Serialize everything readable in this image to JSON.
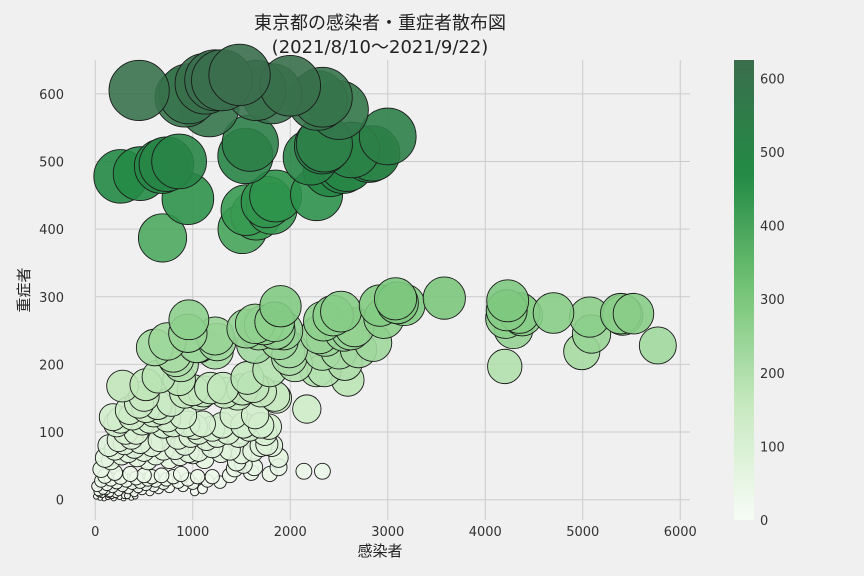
{
  "chart_data": {
    "type": "scatter",
    "title": "東京都の感染者・重症者散布図",
    "subtitle": "(2021/8/10〜2021/9/22)",
    "xlabel": "感染者",
    "ylabel": "重症者",
    "xlim": [
      -300,
      6100
    ],
    "ylim": [
      -30,
      650
    ],
    "xticks": [
      0,
      1000,
      2000,
      3000,
      4000,
      5000,
      6000
    ],
    "yticks": [
      0,
      100,
      200,
      300,
      400,
      500,
      600
    ],
    "grid": true,
    "colorbar": {
      "ticks": [
        0,
        100,
        200,
        300,
        400,
        500,
        600
      ],
      "min": 0,
      "max": 625,
      "colors": [
        "#f7fcf5",
        "#c7e9c0",
        "#74c476",
        "#238b45",
        "#3b6e4d"
      ]
    },
    "marker_size": "proportional to 重症者",
    "marker_color": "proportional to 重症者",
    "points": [
      {
        "x": 450,
        "y": 605
      },
      {
        "x": 920,
        "y": 595
      },
      {
        "x": 960,
        "y": 600
      },
      {
        "x": 1130,
        "y": 615
      },
      {
        "x": 1170,
        "y": 580
      },
      {
        "x": 1230,
        "y": 620
      },
      {
        "x": 1300,
        "y": 620
      },
      {
        "x": 1480,
        "y": 628
      },
      {
        "x": 1650,
        "y": 605
      },
      {
        "x": 1810,
        "y": 600
      },
      {
        "x": 2000,
        "y": 612
      },
      {
        "x": 2280,
        "y": 590
      },
      {
        "x": 2330,
        "y": 595
      },
      {
        "x": 2500,
        "y": 576
      },
      {
        "x": 260,
        "y": 478
      },
      {
        "x": 460,
        "y": 482
      },
      {
        "x": 680,
        "y": 493
      },
      {
        "x": 730,
        "y": 496
      },
      {
        "x": 860,
        "y": 500
      },
      {
        "x": 950,
        "y": 445
      },
      {
        "x": 690,
        "y": 387
      },
      {
        "x": 1540,
        "y": 508
      },
      {
        "x": 1590,
        "y": 527
      },
      {
        "x": 2210,
        "y": 506
      },
      {
        "x": 2330,
        "y": 523
      },
      {
        "x": 2350,
        "y": 526
      },
      {
        "x": 2410,
        "y": 488
      },
      {
        "x": 2540,
        "y": 493
      },
      {
        "x": 2580,
        "y": 496
      },
      {
        "x": 2630,
        "y": 517
      },
      {
        "x": 2810,
        "y": 510
      },
      {
        "x": 2840,
        "y": 512
      },
      {
        "x": 3000,
        "y": 537
      },
      {
        "x": 1510,
        "y": 400
      },
      {
        "x": 1550,
        "y": 428
      },
      {
        "x": 1650,
        "y": 421
      },
      {
        "x": 1760,
        "y": 440
      },
      {
        "x": 1810,
        "y": 430
      },
      {
        "x": 1850,
        "y": 449
      },
      {
        "x": 2270,
        "y": 451
      },
      {
        "x": 960,
        "y": 266
      },
      {
        "x": 950,
        "y": 246
      },
      {
        "x": 1060,
        "y": 230
      },
      {
        "x": 1230,
        "y": 242
      },
      {
        "x": 1250,
        "y": 233
      },
      {
        "x": 1230,
        "y": 220
      },
      {
        "x": 1550,
        "y": 253
      },
      {
        "x": 1640,
        "y": 229
      },
      {
        "x": 1640,
        "y": 260
      },
      {
        "x": 1680,
        "y": 250
      },
      {
        "x": 1730,
        "y": 258
      },
      {
        "x": 1840,
        "y": 263
      },
      {
        "x": 1850,
        "y": 251
      },
      {
        "x": 1890,
        "y": 235
      },
      {
        "x": 1900,
        "y": 286
      },
      {
        "x": 1930,
        "y": 250
      },
      {
        "x": 1990,
        "y": 222
      },
      {
        "x": 1990,
        "y": 210
      },
      {
        "x": 2050,
        "y": 200
      },
      {
        "x": 2170,
        "y": 134
      },
      {
        "x": 2270,
        "y": 192
      },
      {
        "x": 2300,
        "y": 244
      },
      {
        "x": 2330,
        "y": 218
      },
      {
        "x": 2340,
        "y": 264
      },
      {
        "x": 2350,
        "y": 192
      },
      {
        "x": 2360,
        "y": 240
      },
      {
        "x": 2440,
        "y": 272
      },
      {
        "x": 2500,
        "y": 220
      },
      {
        "x": 2520,
        "y": 278
      },
      {
        "x": 2550,
        "y": 248
      },
      {
        "x": 2560,
        "y": 202
      },
      {
        "x": 2590,
        "y": 177
      },
      {
        "x": 2620,
        "y": 250
      },
      {
        "x": 2660,
        "y": 255
      },
      {
        "x": 2700,
        "y": 222
      },
      {
        "x": 2850,
        "y": 232
      },
      {
        "x": 2920,
        "y": 287
      },
      {
        "x": 2960,
        "y": 268
      },
      {
        "x": 3080,
        "y": 297
      },
      {
        "x": 3100,
        "y": 291
      },
      {
        "x": 3170,
        "y": 288
      },
      {
        "x": 3580,
        "y": 298
      },
      {
        "x": 4200,
        "y": 197
      },
      {
        "x": 4210,
        "y": 268
      },
      {
        "x": 4220,
        "y": 280
      },
      {
        "x": 4230,
        "y": 294
      },
      {
        "x": 4290,
        "y": 252
      },
      {
        "x": 4350,
        "y": 276
      },
      {
        "x": 4380,
        "y": 272
      },
      {
        "x": 4700,
        "y": 276
      },
      {
        "x": 4990,
        "y": 219
      },
      {
        "x": 5070,
        "y": 270
      },
      {
        "x": 5090,
        "y": 245
      },
      {
        "x": 5390,
        "y": 275
      },
      {
        "x": 5410,
        "y": 273
      },
      {
        "x": 5520,
        "y": 275
      },
      {
        "x": 5770,
        "y": 228
      },
      {
        "x": 280,
        "y": 168
      },
      {
        "x": 520,
        "y": 170
      },
      {
        "x": 610,
        "y": 225
      },
      {
        "x": 650,
        "y": 182
      },
      {
        "x": 740,
        "y": 234
      },
      {
        "x": 800,
        "y": 215
      },
      {
        "x": 830,
        "y": 208
      },
      {
        "x": 860,
        "y": 178
      },
      {
        "x": 880,
        "y": 200
      },
      {
        "x": 920,
        "y": 158
      },
      {
        "x": 1000,
        "y": 162
      },
      {
        "x": 1040,
        "y": 230
      },
      {
        "x": 1070,
        "y": 155
      },
      {
        "x": 1110,
        "y": 160
      },
      {
        "x": 1180,
        "y": 165
      },
      {
        "x": 1310,
        "y": 165
      },
      {
        "x": 1330,
        "y": 158
      },
      {
        "x": 1460,
        "y": 155
      },
      {
        "x": 1510,
        "y": 163
      },
      {
        "x": 1560,
        "y": 180
      },
      {
        "x": 1620,
        "y": 167
      },
      {
        "x": 1700,
        "y": 160
      },
      {
        "x": 1790,
        "y": 192
      },
      {
        "x": 1840,
        "y": 153
      },
      {
        "x": 1860,
        "y": 150
      },
      {
        "x": 180,
        "y": 122
      },
      {
        "x": 220,
        "y": 112
      },
      {
        "x": 260,
        "y": 118
      },
      {
        "x": 310,
        "y": 100
      },
      {
        "x": 350,
        "y": 132
      },
      {
        "x": 380,
        "y": 123
      },
      {
        "x": 420,
        "y": 100
      },
      {
        "x": 450,
        "y": 142
      },
      {
        "x": 480,
        "y": 115
      },
      {
        "x": 500,
        "y": 153
      },
      {
        "x": 520,
        "y": 135
      },
      {
        "x": 560,
        "y": 118
      },
      {
        "x": 600,
        "y": 128
      },
      {
        "x": 640,
        "y": 140
      },
      {
        "x": 680,
        "y": 132
      },
      {
        "x": 700,
        "y": 110
      },
      {
        "x": 740,
        "y": 120
      },
      {
        "x": 780,
        "y": 145
      },
      {
        "x": 800,
        "y": 112
      },
      {
        "x": 850,
        "y": 92
      },
      {
        "x": 900,
        "y": 125
      },
      {
        "x": 940,
        "y": 112
      },
      {
        "x": 980,
        "y": 95
      },
      {
        "x": 1020,
        "y": 108
      },
      {
        "x": 1060,
        "y": 100
      },
      {
        "x": 1100,
        "y": 112
      },
      {
        "x": 1140,
        "y": 90
      },
      {
        "x": 1200,
        "y": 105
      },
      {
        "x": 1250,
        "y": 95
      },
      {
        "x": 1300,
        "y": 110
      },
      {
        "x": 1360,
        "y": 100
      },
      {
        "x": 1420,
        "y": 125
      },
      {
        "x": 1470,
        "y": 95
      },
      {
        "x": 1520,
        "y": 110
      },
      {
        "x": 1580,
        "y": 105
      },
      {
        "x": 1640,
        "y": 125
      },
      {
        "x": 1700,
        "y": 110
      },
      {
        "x": 1740,
        "y": 98
      },
      {
        "x": 1780,
        "y": 108
      },
      {
        "x": 1810,
        "y": 80
      },
      {
        "x": 60,
        "y": 45
      },
      {
        "x": 100,
        "y": 62
      },
      {
        "x": 140,
        "y": 80
      },
      {
        "x": 160,
        "y": 58
      },
      {
        "x": 200,
        "y": 74
      },
      {
        "x": 240,
        "y": 88
      },
      {
        "x": 270,
        "y": 66
      },
      {
        "x": 300,
        "y": 83
      },
      {
        "x": 340,
        "y": 70
      },
      {
        "x": 370,
        "y": 92
      },
      {
        "x": 400,
        "y": 77
      },
      {
        "x": 430,
        "y": 63
      },
      {
        "x": 460,
        "y": 85
      },
      {
        "x": 500,
        "y": 72
      },
      {
        "x": 540,
        "y": 58
      },
      {
        "x": 580,
        "y": 80
      },
      {
        "x": 620,
        "y": 66
      },
      {
        "x": 660,
        "y": 88
      },
      {
        "x": 700,
        "y": 74
      },
      {
        "x": 760,
        "y": 60
      },
      {
        "x": 820,
        "y": 75
      },
      {
        "x": 870,
        "y": 65
      },
      {
        "x": 920,
        "y": 82
      },
      {
        "x": 960,
        "y": 70
      },
      {
        "x": 1000,
        "y": 68
      },
      {
        "x": 1060,
        "y": 72
      },
      {
        "x": 1120,
        "y": 60
      },
      {
        "x": 1200,
        "y": 78
      },
      {
        "x": 1290,
        "y": 70
      },
      {
        "x": 1380,
        "y": 74
      },
      {
        "x": 1450,
        "y": 56
      },
      {
        "x": 1500,
        "y": 68
      },
      {
        "x": 1620,
        "y": 72
      },
      {
        "x": 1700,
        "y": 80
      },
      {
        "x": 1760,
        "y": 82
      },
      {
        "x": 1880,
        "y": 62
      },
      {
        "x": 20,
        "y": 20
      },
      {
        "x": 40,
        "y": 10
      },
      {
        "x": 60,
        "y": 28
      },
      {
        "x": 80,
        "y": 15
      },
      {
        "x": 100,
        "y": 35
      },
      {
        "x": 120,
        "y": 22
      },
      {
        "x": 140,
        "y": 8
      },
      {
        "x": 160,
        "y": 30
      },
      {
        "x": 180,
        "y": 18
      },
      {
        "x": 200,
        "y": 40
      },
      {
        "x": 220,
        "y": 25
      },
      {
        "x": 240,
        "y": 12
      },
      {
        "x": 260,
        "y": 33
      },
      {
        "x": 280,
        "y": 20
      },
      {
        "x": 300,
        "y": 6
      },
      {
        "x": 320,
        "y": 28
      },
      {
        "x": 340,
        "y": 16
      },
      {
        "x": 360,
        "y": 38
      },
      {
        "x": 380,
        "y": 24
      },
      {
        "x": 400,
        "y": 10
      },
      {
        "x": 420,
        "y": 32
      },
      {
        "x": 440,
        "y": 18
      },
      {
        "x": 460,
        "y": 26
      },
      {
        "x": 480,
        "y": 14
      },
      {
        "x": 500,
        "y": 36
      },
      {
        "x": 520,
        "y": 22
      },
      {
        "x": 540,
        "y": 30
      },
      {
        "x": 560,
        "y": 12
      },
      {
        "x": 580,
        "y": 34
      },
      {
        "x": 600,
        "y": 20
      },
      {
        "x": 620,
        "y": 28
      },
      {
        "x": 650,
        "y": 16
      },
      {
        "x": 680,
        "y": 36
      },
      {
        "x": 700,
        "y": 24
      },
      {
        "x": 730,
        "y": 30
      },
      {
        "x": 760,
        "y": 18
      },
      {
        "x": 800,
        "y": 34
      },
      {
        "x": 850,
        "y": 26
      },
      {
        "x": 880,
        "y": 38
      },
      {
        "x": 900,
        "y": 20
      },
      {
        "x": 950,
        "y": 30
      },
      {
        "x": 1000,
        "y": 24
      },
      {
        "x": 1050,
        "y": 34
      },
      {
        "x": 1100,
        "y": 16
      },
      {
        "x": 1150,
        "y": 28
      },
      {
        "x": 1200,
        "y": 34
      },
      {
        "x": 1280,
        "y": 26
      },
      {
        "x": 1380,
        "y": 36
      },
      {
        "x": 1430,
        "y": 46
      },
      {
        "x": 1520,
        "y": 52
      },
      {
        "x": 1600,
        "y": 40
      },
      {
        "x": 1630,
        "y": 48
      },
      {
        "x": 1790,
        "y": 38
      },
      {
        "x": 1880,
        "y": 48
      },
      {
        "x": 2140,
        "y": 42
      },
      {
        "x": 2330,
        "y": 42
      },
      {
        "x": 10,
        "y": 5
      },
      {
        "x": 30,
        "y": 12
      },
      {
        "x": 50,
        "y": 3
      },
      {
        "x": 70,
        "y": 8
      },
      {
        "x": 90,
        "y": 2
      },
      {
        "x": 110,
        "y": 14
      },
      {
        "x": 130,
        "y": 4
      },
      {
        "x": 150,
        "y": 10
      },
      {
        "x": 170,
        "y": 6
      },
      {
        "x": 190,
        "y": 2
      },
      {
        "x": 210,
        "y": 8
      },
      {
        "x": 250,
        "y": 4
      },
      {
        "x": 290,
        "y": 2
      },
      {
        "x": 330,
        "y": 6
      },
      {
        "x": 370,
        "y": 3
      },
      {
        "x": 410,
        "y": 5
      },
      {
        "x": 1020,
        "y": 12
      }
    ]
  }
}
